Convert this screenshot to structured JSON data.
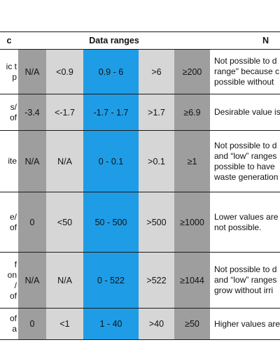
{
  "headers": {
    "metric": "c",
    "data_ranges": "Data ranges",
    "notes": "N"
  },
  "rows": [
    {
      "metric_lines": [
        "ic t",
        "p"
      ],
      "cells": [
        "N/A",
        "<0.9",
        "0.9 - 6",
        ">6",
        "≥200"
      ],
      "note_lines": [
        "Not possible to d",
        "range\" because c",
        "possible without"
      ]
    },
    {
      "metric_lines": [
        "s/",
        "of"
      ],
      "cells": [
        "-3.4",
        "<-1.7",
        "-1.7 - 1.7",
        ">1.7",
        "≥6.9"
      ],
      "note_lines": [
        "Desirable value is"
      ]
    },
    {
      "metric_lines": [
        "ite"
      ],
      "cells": [
        "N/A",
        "N/A",
        "0 - 0.1",
        ">0.1",
        "≥1"
      ],
      "note_lines": [
        "Not possible to d",
        "and “low” ranges",
        "possible to have",
        "waste generation"
      ]
    },
    {
      "metric_lines": [
        "e/",
        "of"
      ],
      "cells": [
        "0",
        "<50",
        "50 - 500",
        ">500",
        "≥1000"
      ],
      "note_lines": [
        "Lower values are",
        "not possible."
      ]
    },
    {
      "metric_lines": [
        "f",
        "on",
        "/",
        "of"
      ],
      "cells": [
        "N/A",
        "N/A",
        "0 - 522",
        ">522",
        "≥1044"
      ],
      "note_lines": [
        "Not possible to d",
        "and “low” ranges",
        "grow without irri"
      ]
    },
    {
      "metric_lines": [
        "of",
        "a"
      ],
      "cells": [
        "0",
        "<1",
        "1 - 40",
        ">40",
        "≥50"
      ],
      "note_lines": [
        "Higher values are"
      ]
    }
  ]
}
